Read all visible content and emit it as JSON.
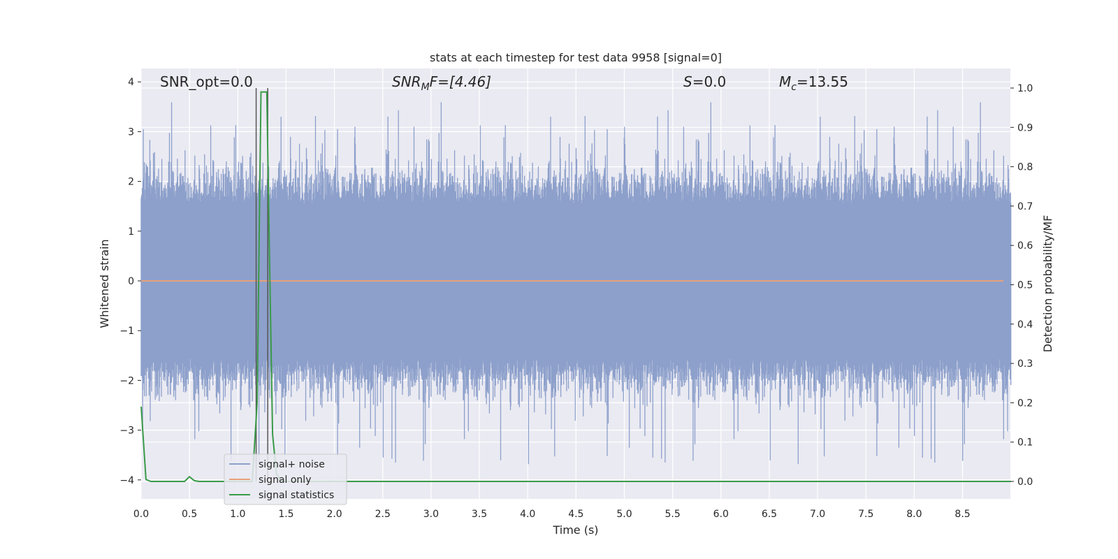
{
  "chart_data": {
    "type": "line",
    "title": "stats at each timestep for test data 9958 [signal=0]",
    "xlabel": "Time (s)",
    "ylabel_left": "Whitened strain",
    "ylabel_right": "Detection probability/MF",
    "xlim": [
      0.0,
      9.0
    ],
    "ylim_left": [
      -4.4,
      4.25
    ],
    "ylim_right": [
      -0.05,
      1.04
    ],
    "xticks": [
      "0.0",
      "0.5",
      "1.0",
      "1.5",
      "2.0",
      "2.5",
      "3.0",
      "3.5",
      "4.0",
      "4.5",
      "5.0",
      "5.5",
      "6.0",
      "6.5",
      "7.0",
      "7.5",
      "8.0",
      "8.5"
    ],
    "yticks_left": [
      "4",
      "3",
      "2",
      "1",
      "0",
      "−1",
      "−2",
      "−3",
      "−4"
    ],
    "yticks_right": [
      "1.0",
      "0.9",
      "0.8",
      "0.7",
      "0.6",
      "0.5",
      "0.4",
      "0.3",
      "0.2",
      "0.1",
      "0.0"
    ],
    "grid": true,
    "legend_placement": "lower-left",
    "annotations": {
      "snr_opt": "SNR_opt=0.0",
      "snr_mf": "SNR",
      "snr_mf_sub": "M",
      "snr_mf_rest": "F=[4.46]",
      "s_label": "S",
      "s_value": "=0.0",
      "mc_label": "M",
      "mc_sub": "c",
      "mc_value": "=13.55"
    },
    "series": [
      {
        "name": "signal+ noise",
        "color": "#8da0cb",
        "axis": "left",
        "note_envelope_typical": [
          -1.6,
          1.6
        ],
        "peak_max": 3.9,
        "peak_min": -4.0
      },
      {
        "name": "signal only",
        "color": "#e8a07a",
        "axis": "left",
        "values_constant": 0.0
      },
      {
        "name": "signal statistics",
        "color": "#3a9a48",
        "axis": "right",
        "x": [
          0.0,
          0.05,
          0.1,
          0.3,
          0.45,
          0.5,
          0.55,
          0.6,
          0.9,
          1.15,
          1.2,
          1.24,
          1.3,
          1.33,
          1.36,
          1.4,
          1.45,
          1.5,
          9.0
        ],
        "values": [
          0.19,
          0.005,
          0.0,
          0.0,
          0.0,
          0.012,
          0.002,
          0.0,
          0.0,
          0.0,
          0.2,
          0.99,
          0.99,
          0.55,
          0.12,
          0.02,
          0.0,
          0.0,
          0.0
        ]
      }
    ],
    "vertical_lines": [
      {
        "x": 1.19,
        "color": "#555555"
      },
      {
        "x": 1.31,
        "color": "#555555"
      }
    ]
  }
}
